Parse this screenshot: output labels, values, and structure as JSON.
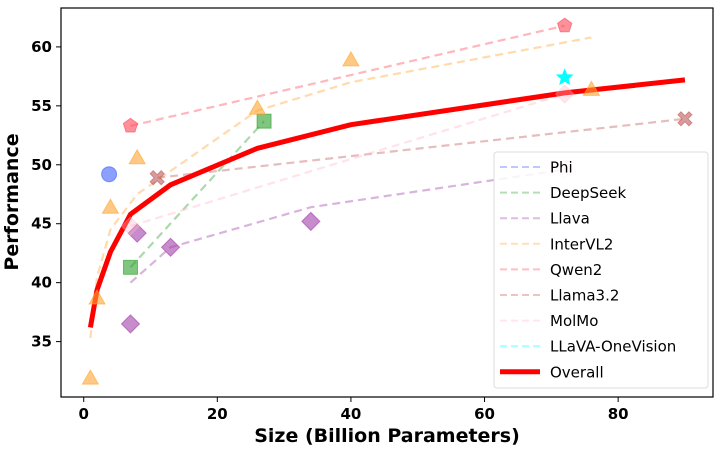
{
  "chart_data": {
    "type": "scatter",
    "title": "",
    "xlabel": "Size (Billion Parameters)",
    "ylabel": "Performance",
    "xlim": [
      -3.4,
      94.2
    ],
    "ylim": [
      30.3,
      63.3
    ],
    "xticks": [
      0,
      20,
      40,
      60,
      80
    ],
    "yticks": [
      35,
      40,
      45,
      50,
      55,
      60
    ],
    "grid": false,
    "legend_position": "lower-right",
    "series": [
      {
        "name": "Phi",
        "color": "#4060ff",
        "marker": "circle",
        "points": [
          [
            3.8,
            49.2
          ]
        ],
        "trend": [
          [
            3.8,
            49.2
          ]
        ]
      },
      {
        "name": "DeepSeek",
        "color": "#2ca02c",
        "marker": "square",
        "points": [
          [
            7,
            41.3
          ],
          [
            27,
            53.7
          ]
        ],
        "trend": [
          [
            7,
            41.3
          ],
          [
            27,
            53.7
          ]
        ]
      },
      {
        "name": "Llava",
        "color": "#a040a8",
        "marker": "diamond",
        "points": [
          [
            7,
            36.5
          ],
          [
            8,
            44.2
          ],
          [
            13,
            43.0
          ],
          [
            34,
            45.2
          ]
        ],
        "trend": [
          [
            7,
            40.0
          ],
          [
            13,
            43.0
          ],
          [
            34,
            46.4
          ],
          [
            72,
            49.6
          ]
        ]
      },
      {
        "name": "InterVL2",
        "color": "#ffa530",
        "marker": "triangle",
        "points": [
          [
            1,
            31.9
          ],
          [
            2,
            38.7
          ],
          [
            4,
            46.4
          ],
          [
            8,
            50.6
          ],
          [
            26,
            54.8
          ],
          [
            40,
            58.9
          ],
          [
            76,
            56.4
          ]
        ],
        "trend": [
          [
            1,
            35.3
          ],
          [
            2,
            40.5
          ],
          [
            4,
            44.5
          ],
          [
            8,
            47.5
          ],
          [
            26,
            54.6
          ],
          [
            40,
            57.0
          ],
          [
            76,
            60.8
          ]
        ]
      },
      {
        "name": "Qwen2",
        "color": "#ff4858",
        "marker": "pentagon",
        "points": [
          [
            7,
            53.3
          ],
          [
            72,
            61.8
          ]
        ],
        "trend": [
          [
            7,
            53.3
          ],
          [
            72,
            61.8
          ]
        ]
      },
      {
        "name": "Llama3.2",
        "color": "#c05a5a",
        "marker": "x",
        "points": [
          [
            11,
            48.9
          ],
          [
            90,
            53.9
          ]
        ],
        "trend": [
          [
            11,
            48.9
          ],
          [
            90,
            53.9
          ]
        ]
      },
      {
        "name": "MolMo",
        "color": "#ffb8c8",
        "marker": "diamond",
        "points": [
          [
            7,
            44.8
          ],
          [
            72,
            56.0
          ],
          [
            72,
            49.6
          ]
        ],
        "trend": [
          [
            7,
            44.8
          ],
          [
            72,
            56.0
          ]
        ]
      },
      {
        "name": "LLaVA-OneVision",
        "color": "#00ffff",
        "marker": "star",
        "points": [
          [
            72,
            57.4
          ]
        ],
        "trend": [
          [
            72,
            57.4
          ]
        ]
      }
    ],
    "overall": {
      "name": "Overall",
      "color": "#ff0000",
      "points": [
        [
          1,
          36.2
        ],
        [
          2,
          39.4
        ],
        [
          4,
          42.6
        ],
        [
          7,
          45.8
        ],
        [
          13,
          48.3
        ],
        [
          26,
          51.4
        ],
        [
          40,
          53.4
        ],
        [
          72,
          56.1
        ],
        [
          90,
          57.2
        ]
      ]
    }
  }
}
